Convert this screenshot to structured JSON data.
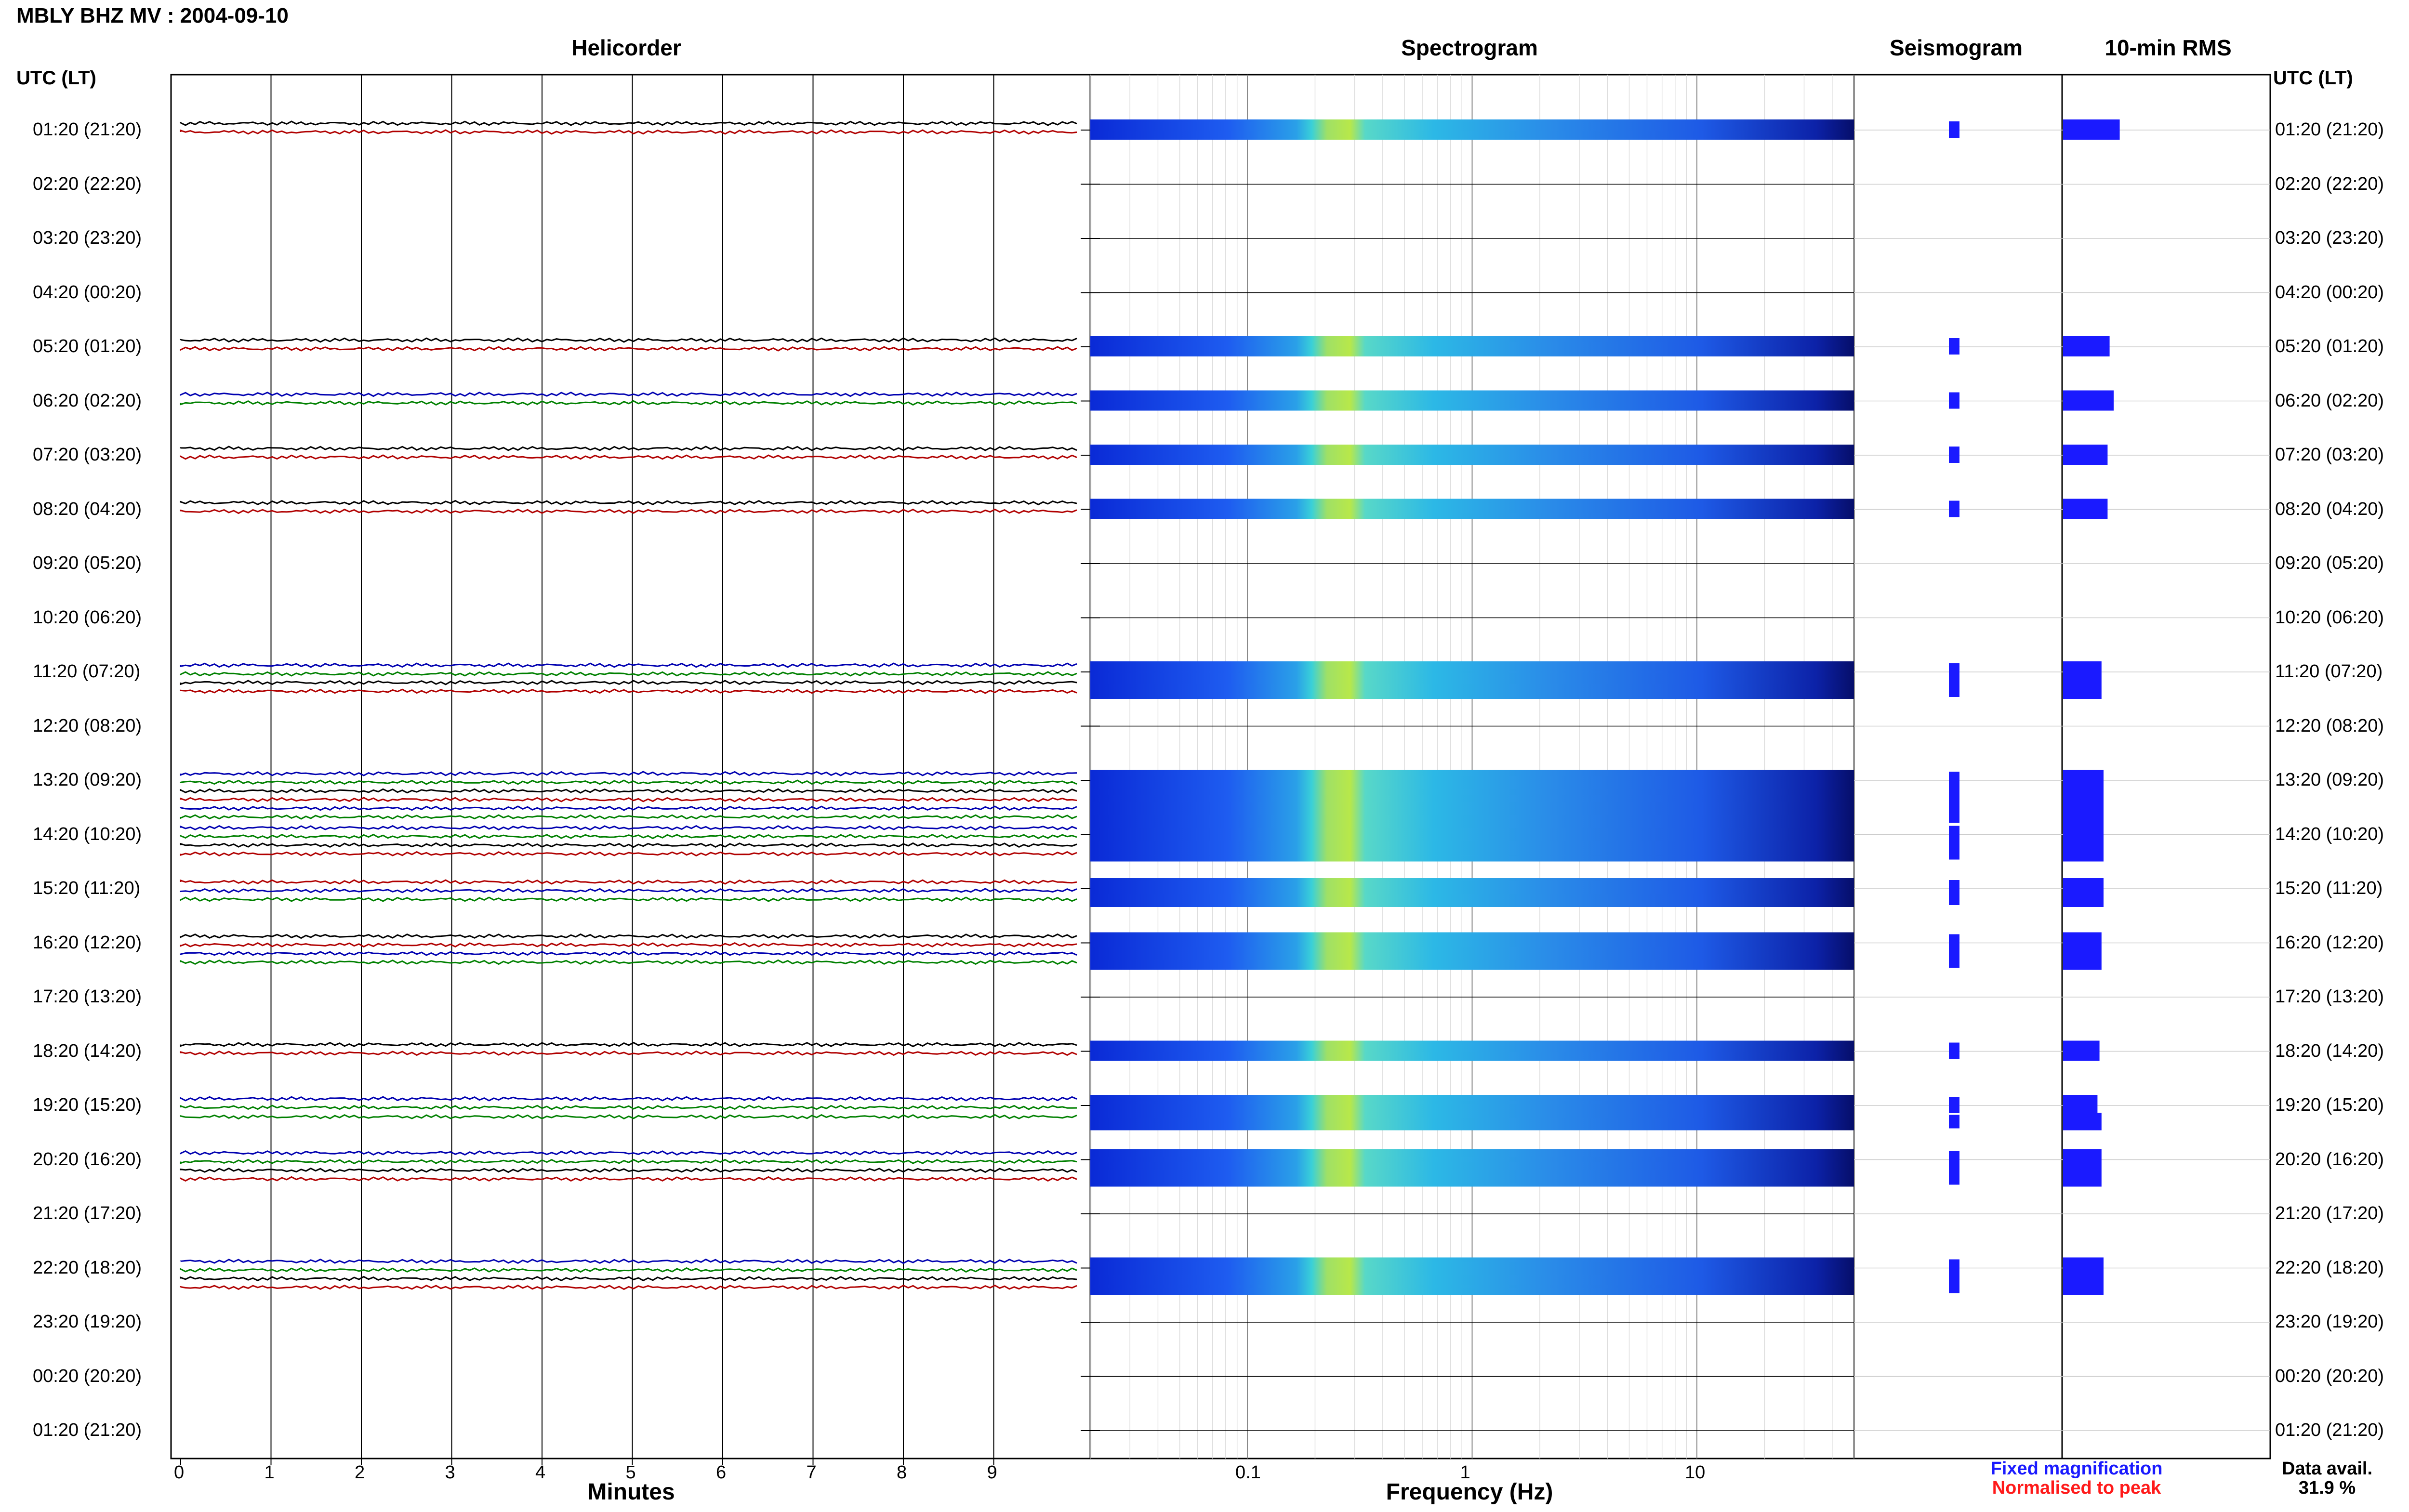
{
  "title": "MBLY BHZ MV : 2004-09-10",
  "columns": {
    "helicorder": "Helicorder",
    "spectrogram": "Spectrogram",
    "seismogram": "Seismogram",
    "rms": "10-min RMS"
  },
  "time_axis_title_left": "UTC (LT)",
  "time_axis_title_right": "UTC (LT)",
  "x_labels": {
    "helicorder": "Minutes",
    "spectrogram": "Frequency (Hz)"
  },
  "helicorder_ticks": [
    "0",
    "1",
    "2",
    "3",
    "4",
    "5",
    "6",
    "7",
    "8",
    "9"
  ],
  "spectrogram_ticks": [
    "0.1",
    "1",
    "10"
  ],
  "legend": {
    "fixed": "Fixed magnification",
    "fixed_color": "#1a1aff",
    "normalised": "Normalised to peak",
    "normalised_color": "#ff1a1a"
  },
  "data_avail": {
    "label": "Data avail.",
    "value": "31.9 %"
  },
  "colors": {
    "trace_black": "#000000",
    "trace_red": "#b00000",
    "trace_blue": "#0000b0",
    "trace_green": "#008000",
    "rms_fill": "#1a1aff",
    "seismo_fill": "#1a1aff"
  },
  "chart_data": {
    "type": "heatmap",
    "time_labels": [
      "01:20 (21:20)",
      "02:20 (22:20)",
      "03:20 (23:20)",
      "04:20 (00:20)",
      "05:20 (01:20)",
      "06:20 (02:20)",
      "07:20 (03:20)",
      "08:20 (04:20)",
      "09:20 (05:20)",
      "10:20 (06:20)",
      "11:20 (07:20)",
      "12:20 (08:20)",
      "13:20 (09:20)",
      "14:20 (10:20)",
      "15:20 (11:20)",
      "16:20 (12:20)",
      "17:20 (13:20)",
      "18:20 (14:20)",
      "19:20 (15:20)",
      "20:20 (16:20)",
      "21:20 (17:20)",
      "22:20 (18:20)",
      "23:20 (19:20)",
      "00:20 (20:20)",
      "01:20 (21:20)"
    ],
    "xlabel_helicorder": "Minutes",
    "xlim_helicorder": [
      0,
      10
    ],
    "xlabel_spectrogram": "Frequency (Hz)",
    "xlim_spectrogram": [
      0.02,
      50
    ],
    "xscale_spectrogram": "log",
    "data_availability_percent": 31.9,
    "hours_with_data": [
      {
        "hour": "01:20",
        "traces": [
          "black",
          "red"
        ],
        "rms": 0.28
      },
      {
        "hour": "05:20",
        "traces": [
          "black",
          "red"
        ],
        "rms": 0.23
      },
      {
        "hour": "06:20",
        "traces": [
          "blue",
          "green"
        ],
        "rms": 0.25
      },
      {
        "hour": "07:20",
        "traces": [
          "black",
          "red"
        ],
        "rms": 0.22
      },
      {
        "hour": "08:20",
        "traces": [
          "black",
          "red"
        ],
        "rms": 0.22
      },
      {
        "hour": "11:20",
        "traces": [
          "blue",
          "green",
          "black",
          "red"
        ],
        "rms": 0.19
      },
      {
        "hour": "13:20",
        "traces": [
          "blue",
          "green",
          "black",
          "red",
          "blue",
          "green"
        ],
        "rms": 0.2
      },
      {
        "hour": "14:20",
        "traces": [
          "blue",
          "green",
          "black",
          "red"
        ],
        "rms": 0.2
      },
      {
        "hour": "15:20",
        "traces": [
          "red",
          "blue",
          "green"
        ],
        "rms": 0.2
      },
      {
        "hour": "16:20",
        "traces": [
          "black",
          "red",
          "blue",
          "green"
        ],
        "rms": 0.19
      },
      {
        "hour": "18:20",
        "traces": [
          "black",
          "red"
        ],
        "rms": 0.18
      },
      {
        "hour": "19:20",
        "traces": [
          "blue",
          "green"
        ],
        "rms": 0.17
      },
      {
        "hour": "19:40",
        "traces": [
          "green"
        ],
        "rms": 0.19
      },
      {
        "hour": "20:20",
        "traces": [
          "blue",
          "green",
          "black",
          "red"
        ],
        "rms": 0.19
      },
      {
        "hour": "22:20",
        "traces": [
          "blue",
          "green",
          "black",
          "red"
        ],
        "rms": 0.2
      }
    ]
  }
}
